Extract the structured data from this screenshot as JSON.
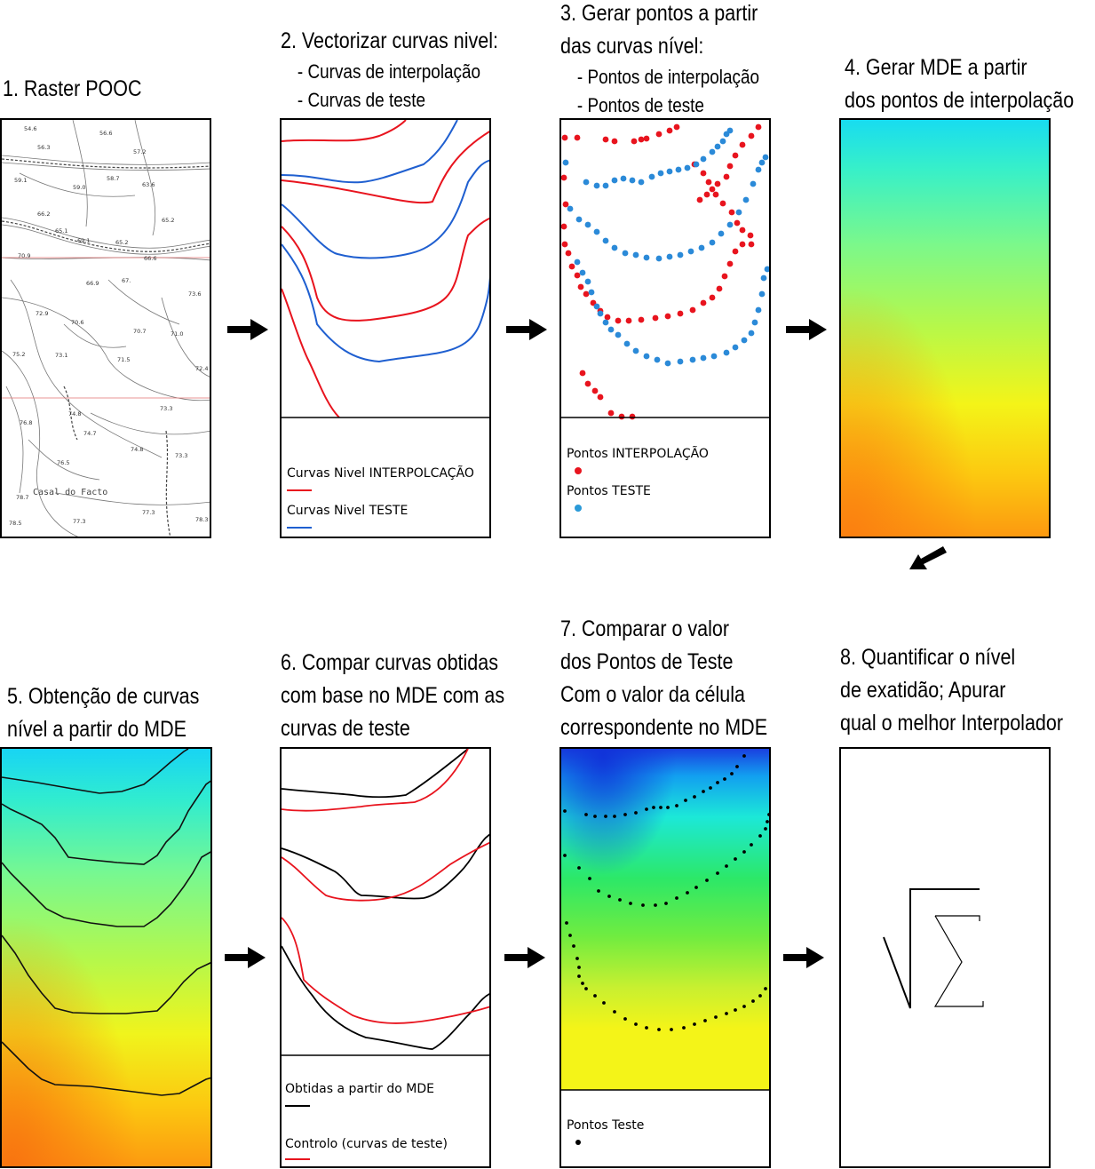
{
  "steps": {
    "s1": {
      "title": "1. Raster POOC"
    },
    "s2": {
      "title": "2. Vectorizar curvas nivel:",
      "sub1": "- Curvas de interpolação",
      "sub2": "- Curvas de teste",
      "legend1": "Curvas Nivel INTERPOLCAÇÃO",
      "legend2": "Curvas Nivel TESTE"
    },
    "s3": {
      "line1": "3. Gerar pontos a partir",
      "line2": "das curvas nível:",
      "sub1": "- Pontos de interpolação",
      "sub2": "- Pontos de teste",
      "legend1": "Pontos INTERPOLAÇÃO",
      "legend2": "Pontos TESTE"
    },
    "s4": {
      "line1": "4. Gerar MDE a partir",
      "line2": "dos pontos de interpolação"
    },
    "s5": {
      "line1": "5. Obtenção de curvas",
      "line2": "nível a partir do MDE"
    },
    "s6": {
      "line1": "6. Compar curvas obtidas",
      "line2": "com base no MDE com as",
      "line3": "curvas de teste",
      "legend1": "Obtidas a partir do MDE",
      "legend2": "Controlo (curvas de teste)"
    },
    "s7": {
      "line1": "7. Comparar o valor",
      "line2": "dos Pontos de Teste",
      "line3": "Com o valor da célula",
      "line4": "correspondente no MDE",
      "legend1": "Pontos Teste"
    },
    "s8": {
      "line1": "8. Quantificar o nível",
      "line2": " de exatidão; Apurar",
      "line3": "qual o melhor Interpolador"
    }
  },
  "map_labels": [
    "54.6",
    "56.6",
    "56.3",
    "57.2",
    "58.7",
    "59.1",
    "59.0",
    "63.6",
    "66.2",
    "65.1",
    "65.2",
    "69.1",
    "65.2",
    "66.6",
    "70.9",
    "66.9",
    "67.",
    "73.6",
    "72.9",
    "70.6",
    "70.7",
    "71.0",
    "75.2",
    "73.1",
    "71.5",
    "72.4",
    "74.8",
    "73.3",
    "76.8",
    "74.7",
    "74.8",
    "73.3",
    "76.5",
    "78.7",
    "77.3",
    "78.3",
    "78.5",
    "77.3"
  ],
  "map_place": "Casal do Facto",
  "colors": {
    "interpolation": "#e8141e",
    "test": "#2b8ad8",
    "curve_test": "#1f5fd0",
    "obtained": "#000000",
    "test_points": "#000000"
  },
  "icons": [
    "arrow-right-icon",
    "arrow-down-left-icon",
    "root-sum-icon"
  ]
}
